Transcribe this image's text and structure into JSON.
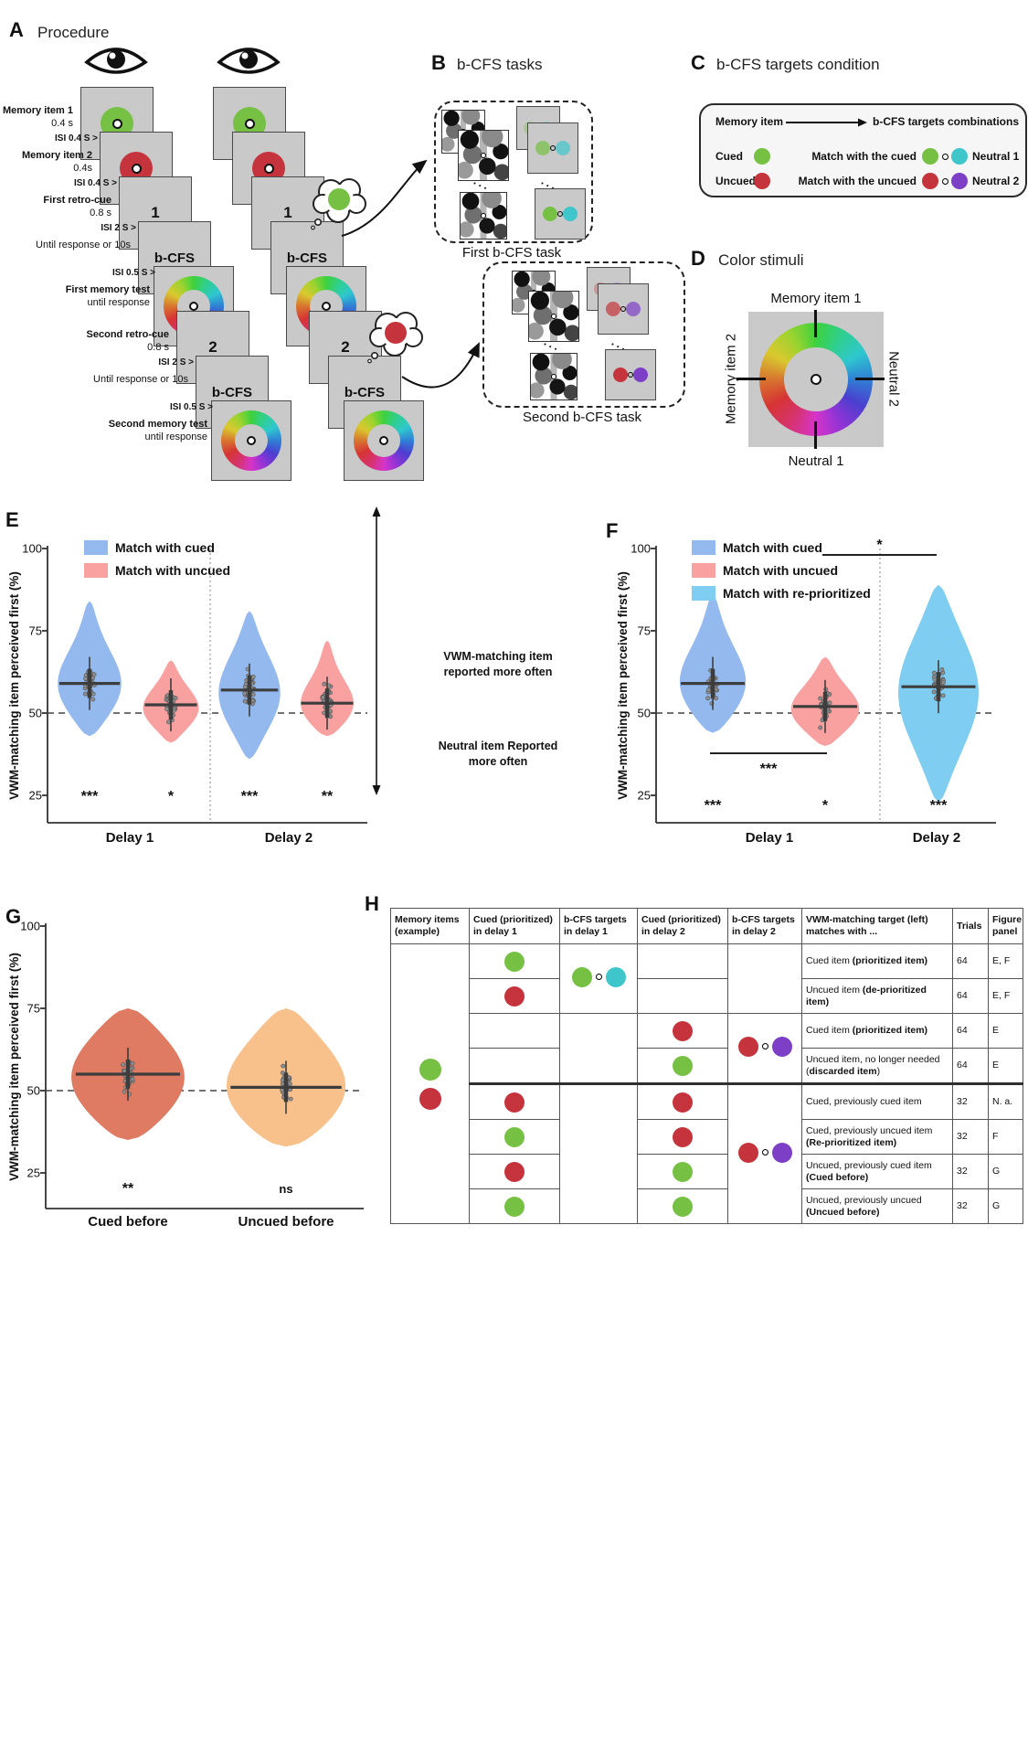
{
  "colors": {
    "green": "#76c043",
    "red": "#c5343c",
    "cyan": "#3fc6cb",
    "purple": "#7c3fc6",
    "blue_violin": "#93b9ee",
    "pink_violin": "#f9a0a0",
    "lightblue_violin": "#7fcdf1",
    "salmon_violin": "#df7a63",
    "orange_violin": "#f8c18b",
    "screen_gray": "#c9c9c9",
    "stat_gray": "#3d3d3d"
  },
  "panel_a": {
    "label": "A",
    "title": "Procedure",
    "steps": [
      {
        "screen": "disc",
        "disc": "green",
        "label": "Memory item 1",
        "sublabel": "0.4 s",
        "plain": false,
        "isi_after": "ISI 0.4 S >"
      },
      {
        "screen": "disc",
        "disc": "red",
        "label": "Memory item 2",
        "sublabel": "0.4s",
        "plain": false,
        "isi_after": "ISI 0.4 S >"
      },
      {
        "screen": "text",
        "text": "1",
        "label": "First retro-cue",
        "sublabel": "0.8 s",
        "plain": false,
        "isi_after": "ISI 2 S >"
      },
      {
        "screen": "text",
        "text": "b-CFS",
        "label": "Until response or 10s",
        "sublabel": "",
        "plain": true,
        "isi_after": "ISI 0.5 S >"
      },
      {
        "screen": "wheel",
        "text": "",
        "label": "First memory test",
        "sublabel": "until response",
        "plain": false,
        "isi_after": ""
      },
      {
        "screen": "text",
        "text": "2",
        "label": "Second retro-cue",
        "sublabel": "0.8 s",
        "plain": false,
        "isi_after": "ISI 2 S >"
      },
      {
        "screen": "text",
        "text": "b-CFS",
        "label": "Until response or 10s",
        "sublabel": "",
        "plain": true,
        "isi_after": "ISI 0.5 S >"
      },
      {
        "screen": "wheel",
        "text": "",
        "label": "Second memory test",
        "sublabel": "until response",
        "plain": false,
        "isi_after": ""
      }
    ]
  },
  "panel_b": {
    "label": "B",
    "title": "b-CFS tasks",
    "first_label": "First b-CFS task",
    "second_label": "Second b-CFS task"
  },
  "panel_c": {
    "label": "C",
    "title": "b-CFS targets condition",
    "header_left": "Memory item",
    "header_right": "b-CFS targets combinations",
    "rows": [
      {
        "item": "Cued",
        "item_color": "green",
        "match": "Match with the cued",
        "pair": [
          "green",
          "cyan"
        ],
        "neutral": "Neutral 1"
      },
      {
        "item": "Uncued",
        "item_color": "red",
        "match": "Match with the uncued",
        "pair": [
          "red",
          "purple"
        ],
        "neutral": "Neutral 2"
      }
    ]
  },
  "panel_d": {
    "label": "D",
    "title": "Color stimuli",
    "top_label": "Memory item 1",
    "left_label": "Memory item 2",
    "right_label": "Neutral 2",
    "bottom_label": "Neutral 1"
  },
  "chart_data": [
    {
      "panel_label": "E",
      "type": "violin",
      "ylabel": "VWM-matching item perceived first (%)",
      "yticks": [
        25,
        50,
        75,
        100
      ],
      "ylim": [
        14,
        100
      ],
      "reference_line": 50,
      "grid": false,
      "legend": [
        {
          "label": "Match with cued",
          "color_key": "blue_violin"
        },
        {
          "label": "Match with uncued",
          "color_key": "pink_violin"
        }
      ],
      "group_labels": [
        "Delay 1",
        "Delay 2"
      ],
      "violins": [
        {
          "group": "Delay 1",
          "series": "Match with cued",
          "color_key": "blue_violin",
          "mean": 59,
          "min": 43,
          "max": 84,
          "sig": "***"
        },
        {
          "group": "Delay 1",
          "series": "Match with uncued",
          "color_key": "pink_violin",
          "mean": 52.5,
          "min": 41,
          "max": 66,
          "sig": "*"
        },
        {
          "group": "Delay 2",
          "series": "Match with cued",
          "color_key": "blue_violin",
          "mean": 57,
          "min": 36,
          "max": 81,
          "sig": "***"
        },
        {
          "group": "Delay 2",
          "series": "Match with uncued",
          "color_key": "pink_violin",
          "mean": 53,
          "min": 43,
          "max": 72,
          "sig": "**"
        }
      ],
      "annotation_up_lines": [
        "VWM-matching item",
        "reported more often"
      ],
      "annotation_down_lines": [
        "Neutral item Reported",
        "more often"
      ]
    },
    {
      "panel_label": "F",
      "type": "violin",
      "ylabel": "VWM-matching item perceived first (%)",
      "yticks": [
        25,
        50,
        75,
        100
      ],
      "ylim": [
        14,
        100
      ],
      "reference_line": 50,
      "grid": false,
      "legend": [
        {
          "label": "Match with cued",
          "color_key": "blue_violin"
        },
        {
          "label": "Match with uncued",
          "color_key": "pink_violin"
        },
        {
          "label": "Match with re-prioritized",
          "color_key": "lightblue_violin"
        }
      ],
      "group_labels": [
        "Delay 1",
        "Delay 2"
      ],
      "violins": [
        {
          "group": "Delay 1",
          "series": "Match with cued",
          "color_key": "blue_violin",
          "mean": 59,
          "min": 44,
          "max": 86,
          "sig": "***"
        },
        {
          "group": "Delay 1",
          "series": "Match with uncued",
          "color_key": "pink_violin",
          "mean": 52,
          "min": 40,
          "max": 67,
          "sig": "*"
        },
        {
          "group": "Delay 2",
          "series": "Match with re-prioritized",
          "color_key": "lightblue_violin",
          "mean": 58,
          "min": 23,
          "max": 89,
          "sig": "***"
        }
      ],
      "comparisons": [
        {
          "between": [
            "Delay 1 - Match with uncued",
            "Delay 2 - Match with re-prioritized"
          ],
          "sig": "*"
        },
        {
          "between": [
            "Delay 1 - Match with cued",
            "Delay 1 - Match with uncued"
          ],
          "sig": "***"
        }
      ]
    },
    {
      "panel_label": "G",
      "type": "violin",
      "ylabel": "VWM-matching item perceived first (%)",
      "yticks": [
        25,
        50,
        75,
        100
      ],
      "ylim": [
        14,
        100
      ],
      "reference_line": 50,
      "grid": false,
      "group_labels": [
        "Cued before",
        "Uncued before"
      ],
      "violins": [
        {
          "group": "Cued before",
          "series": "Cued before",
          "color_key": "salmon_violin",
          "mean": 55,
          "min": 35,
          "max": 75,
          "sig": "**"
        },
        {
          "group": "Uncued before",
          "series": "Uncued before",
          "color_key": "orange_violin",
          "mean": 51,
          "min": 33,
          "max": 75,
          "sig": "ns"
        }
      ]
    }
  ],
  "panel_h": {
    "label": "H",
    "headers": [
      "Memory items (example)",
      "Cued (prioritized) in delay 1",
      "b-CFS targets in delay 1",
      "Cued (prioritized) in delay 2",
      "b-CFS targets in delay 2",
      "VWM-matching target (left) matches with ...",
      "Trials",
      "Figure panel"
    ],
    "memory_items": [
      "green",
      "red"
    ],
    "bcfs_delay1_pair": [
      "green",
      "cyan"
    ],
    "bcfs_delay2_pair": [
      "red",
      "purple"
    ],
    "rows": [
      {
        "cued_d1": "green",
        "cued_d2": "",
        "desc_pre": "Cued item ",
        "desc_bold": "(prioritized item)",
        "desc_post": "",
        "trials": "64",
        "figure_panel": "E, F"
      },
      {
        "cued_d1": "red",
        "cued_d2": "",
        "desc_pre": "Uncued item ",
        "desc_bold": "(de-prioritized item)",
        "desc_post": "",
        "trials": "64",
        "figure_panel": "E, F"
      },
      {
        "cued_d1": "",
        "cued_d2": "red",
        "desc_pre": "Cued item ",
        "desc_bold": "(prioritized item)",
        "desc_post": "",
        "trials": "64",
        "figure_panel": "E"
      },
      {
        "cued_d1": "",
        "cued_d2": "green",
        "desc_pre": "Uncued item, no longer needed (",
        "desc_bold": "discarded item",
        "desc_post": ")",
        "trials": "64",
        "figure_panel": "E"
      },
      {
        "cued_d1": "red",
        "cued_d2": "red",
        "desc_pre": "Cued, previously cued item",
        "desc_bold": "",
        "desc_post": "",
        "trials": "32",
        "figure_panel": "N. a."
      },
      {
        "cued_d1": "green",
        "cued_d2": "red",
        "desc_pre": "Cued, previously uncued item ",
        "desc_bold": "(Re-prioritized item)",
        "desc_post": "",
        "trials": "32",
        "figure_panel": "F"
      },
      {
        "cued_d1": "red",
        "cued_d2": "green",
        "desc_pre": "Uncued, previously cued item ",
        "desc_bold": "(Cued before)",
        "desc_post": "",
        "trials": "32",
        "figure_panel": "G"
      },
      {
        "cued_d1": "green",
        "cued_d2": "green",
        "desc_pre": "Uncued, previously uncued ",
        "desc_bold": "(Uncued before)",
        "desc_post": "",
        "trials": "32",
        "figure_panel": "G"
      }
    ]
  }
}
